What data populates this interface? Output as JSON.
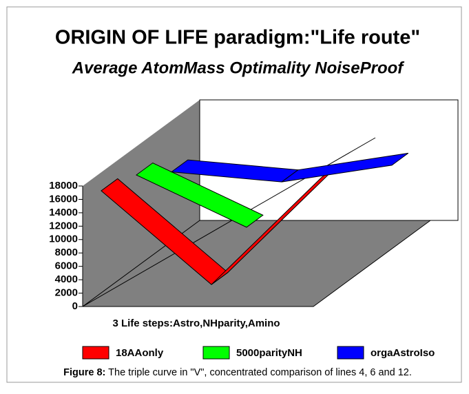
{
  "chart_data": {
    "type": "ribbon3d",
    "title": "ORIGIN OF LIFE paradigm:\"Life route\"",
    "subtitle": "Average AtomMass Optimality NoiseProof",
    "x_label": "3 Life steps:Astro,NHparity,Amino",
    "categories": [
      null,
      null,
      null
    ],
    "series": [
      {
        "name": "18AAonly",
        "color": "#ff0000",
        "values": [
          16000,
          2000,
          18000
        ]
      },
      {
        "name": "5000parityNH",
        "color": "#00ff00",
        "values": [
          14500,
          6700,
          null
        ]
      },
      {
        "name": "orgaAstroIso",
        "color": "#0000ff",
        "values": [
          11100,
          9600,
          12100
        ]
      }
    ],
    "ylim": [
      0,
      18000
    ],
    "yticks": [
      0,
      2000,
      4000,
      6000,
      8000,
      10000,
      12000,
      14000,
      16000,
      18000
    ]
  },
  "caption": {
    "label": "Figure 8:",
    "text": "The triple curve in \"V\", concentrated comparison of lines 4, 6 and 12."
  }
}
